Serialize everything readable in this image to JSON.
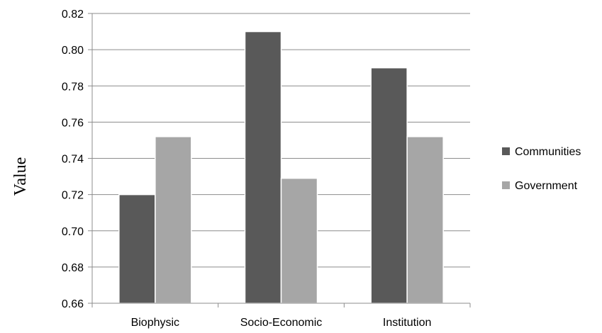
{
  "chart_data": {
    "type": "bar",
    "title": "",
    "xlabel": "",
    "ylabel": "Value",
    "categories": [
      "Biophysic",
      "Socio-Economic",
      "Institution"
    ],
    "series": [
      {
        "name": "Communities",
        "values": [
          0.72,
          0.81,
          0.79
        ],
        "color": "#595959"
      },
      {
        "name": "Government",
        "values": [
          0.752,
          0.729,
          0.752
        ],
        "color": "#a6a6a6"
      }
    ],
    "ylim": [
      0.66,
      0.82
    ],
    "yticks": [
      0.66,
      0.68,
      0.7,
      0.72,
      0.74,
      0.76,
      0.78,
      0.8,
      0.82
    ],
    "ytick_labels": [
      "0.66",
      "0.68",
      "0.70",
      "0.72",
      "0.74",
      "0.76",
      "0.78",
      "0.80",
      "0.82"
    ],
    "grid": true,
    "legend_position": "right",
    "colors": {
      "grid": "#8c8c8c",
      "axis": "#8c8c8c"
    }
  }
}
